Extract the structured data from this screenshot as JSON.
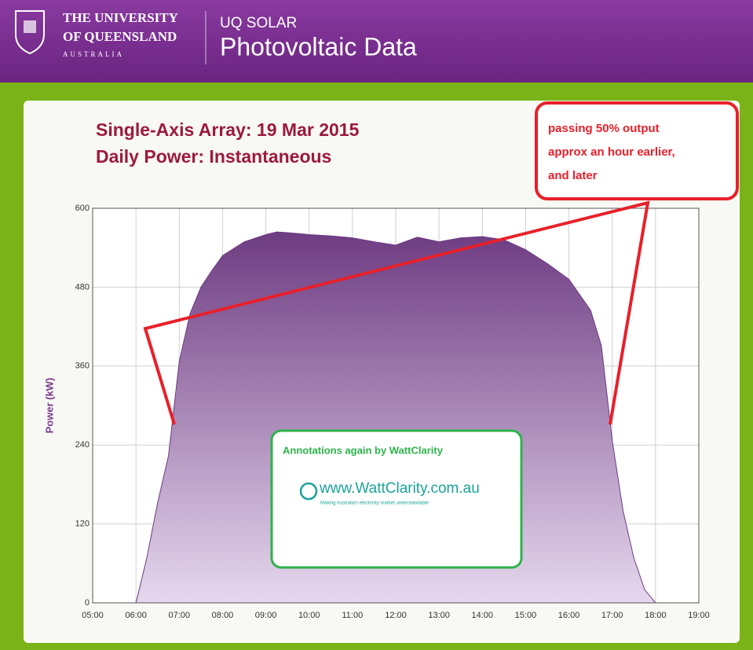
{
  "header": {
    "logo": [
      "THE UNIVERSITY",
      "OF QUEENSLAND",
      "AUSTRALIA"
    ],
    "kicker": "UQ SOLAR",
    "title": "Photovoltaic Data"
  },
  "chart_data": {
    "type": "area",
    "title": [
      "Single-Axis Array: 19 Mar 2015",
      "Daily Power: Instantaneous"
    ],
    "y_label": "Power (kW)",
    "x": [
      6,
      6.25,
      6.5,
      6.75,
      7,
      7.25,
      7.5,
      7.75,
      8,
      8.5,
      9,
      9.25,
      9.5,
      10,
      10.5,
      11,
      11.5,
      12,
      12.5,
      13,
      13.5,
      14,
      14.5,
      15,
      15.5,
      16,
      16.5,
      16.75,
      17,
      17.25,
      17.5,
      17.75,
      18
    ],
    "values": [
      0,
      68,
      152,
      223,
      367,
      440,
      480,
      505,
      528,
      549,
      560,
      564,
      563,
      560,
      558,
      555,
      549,
      544,
      556,
      549,
      555,
      557,
      552,
      537,
      516,
      492,
      445,
      391,
      247,
      140,
      68,
      20,
      0
    ],
    "color": "#6e3c82",
    "xlim": [
      5,
      19
    ],
    "xticks": [
      {
        "value": 5,
        "label": "05:00"
      },
      {
        "value": 6,
        "label": "06:00"
      },
      {
        "value": 7,
        "label": "07:00"
      },
      {
        "value": 8,
        "label": "08:00"
      },
      {
        "value": 9,
        "label": "09:00"
      },
      {
        "value": 10,
        "label": "10:00"
      },
      {
        "value": 11,
        "label": "11:00"
      },
      {
        "value": 12,
        "label": "12:00"
      },
      {
        "value": 13,
        "label": "13:00"
      },
      {
        "value": 14,
        "label": "14:00"
      },
      {
        "value": 15,
        "label": "15:00"
      },
      {
        "value": 16,
        "label": "16:00"
      },
      {
        "value": 17,
        "label": "17:00"
      },
      {
        "value": 18,
        "label": "18:00"
      },
      {
        "value": 19,
        "label": "19:00"
      }
    ],
    "ylim": [
      0,
      600
    ],
    "yticks": [
      0,
      120,
      240,
      360,
      480,
      600
    ],
    "grid": true,
    "callout": [
      "passing 50% output",
      "approx an hour earlier,",
      "and later"
    ],
    "credit": {
      "title": "Annotations again by WattClarity",
      "logo": "www.WattClarity.com.au",
      "tagline": "Making Australia's electricity market understandable"
    }
  }
}
